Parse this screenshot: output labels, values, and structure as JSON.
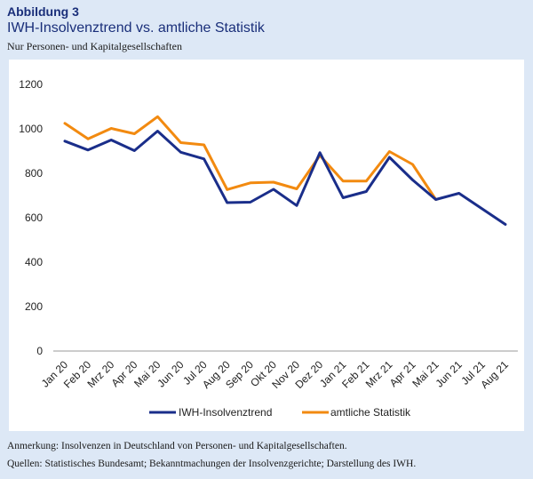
{
  "header": {
    "figure_label": "Abbildung 3",
    "title": "IWH-Insolvenztrend vs. amtliche Statistik",
    "subtitle": "Nur Personen- und Kapitalgesellschaften"
  },
  "footer": {
    "note": "Anmerkung: Insolvenzen in Deutschland von Personen- und Kapitalgesellschaften.",
    "sources": "Quellen: Statistisches Bundesamt; Bekanntmachungen der Insolvenzgerichte; Darstellung des IWH."
  },
  "colors": {
    "iwh": "#1a2e8a",
    "amtlich": "#f28a10",
    "axis": "#999999"
  },
  "chart_data": {
    "type": "line",
    "title": "IWH-Insolvenztrend vs. amtliche Statistik",
    "subtitle": "Nur Personen- und Kapitalgesellschaften",
    "xlabel": "",
    "ylabel": "",
    "ylim": [
      0,
      1200
    ],
    "yticks": [
      0,
      200,
      400,
      600,
      800,
      1000,
      1200
    ],
    "grid": false,
    "legend_position": "bottom",
    "categories": [
      "Jan 20",
      "Feb 20",
      "Mrz 20",
      "Apr 20",
      "Mai 20",
      "Jun 20",
      "Jul 20",
      "Aug 20",
      "Sep 20",
      "Okt 20",
      "Nov 20",
      "Dez 20",
      "Jan 21",
      "Feb 21",
      "Mrz 21",
      "Apr 21",
      "Mai 21",
      "Jun 21",
      "Jul 21",
      "Aug 21"
    ],
    "series": [
      {
        "name": "IWH-Insolvenztrend",
        "color": "#1a2e8a",
        "values": [
          945,
          905,
          950,
          902,
          990,
          895,
          865,
          668,
          670,
          728,
          655,
          893,
          690,
          718,
          872,
          770,
          682,
          710,
          640,
          570
        ]
      },
      {
        "name": "amtliche Statistik",
        "color": "#f28a10",
        "values": [
          1025,
          955,
          1002,
          978,
          1055,
          938,
          928,
          727,
          757,
          760,
          730,
          880,
          765,
          765,
          898,
          840,
          682,
          null,
          null,
          null
        ]
      }
    ]
  }
}
